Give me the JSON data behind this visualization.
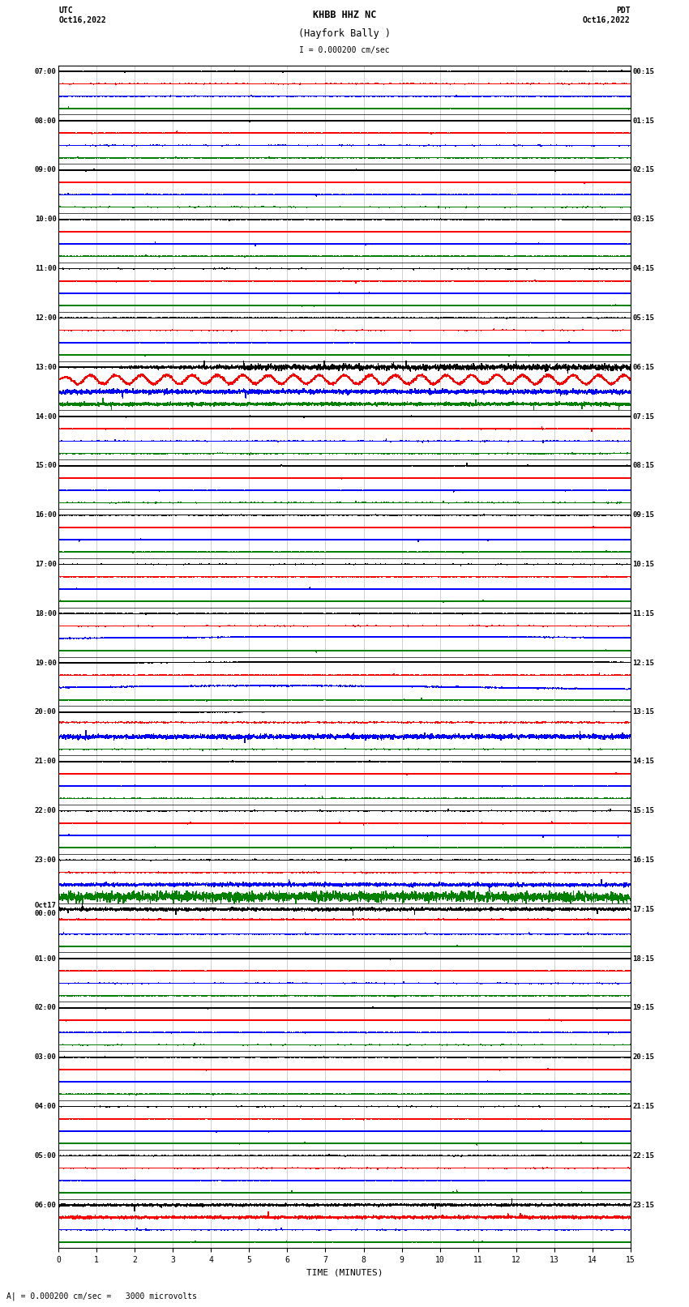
{
  "title_line1": "KHBB HHZ NC",
  "title_line2": "(Hayfork Bally )",
  "scale_text": "I = 0.000200 cm/sec",
  "bottom_label": "A| = 0.000200 cm/sec =   3000 microvolts",
  "xlabel": "TIME (MINUTES)",
  "fig_width": 8.5,
  "fig_height": 16.13,
  "dpi": 100,
  "xlim": [
    0,
    15
  ],
  "xticks": [
    0,
    1,
    2,
    3,
    4,
    5,
    6,
    7,
    8,
    9,
    10,
    11,
    12,
    13,
    14,
    15
  ],
  "left_times": [
    "07:00",
    "08:00",
    "09:00",
    "10:00",
    "11:00",
    "12:00",
    "13:00",
    "14:00",
    "15:00",
    "16:00",
    "17:00",
    "18:00",
    "19:00",
    "20:00",
    "21:00",
    "22:00",
    "23:00",
    "Oct17\n00:00",
    "01:00",
    "02:00",
    "03:00",
    "04:00",
    "05:00",
    "06:00"
  ],
  "right_times": [
    "00:15",
    "01:15",
    "02:15",
    "03:15",
    "04:15",
    "05:15",
    "06:15",
    "07:15",
    "08:15",
    "09:15",
    "10:15",
    "11:15",
    "12:15",
    "13:15",
    "14:15",
    "15:15",
    "16:15",
    "17:15",
    "18:15",
    "19:15",
    "20:15",
    "21:15",
    "22:15",
    "23:15"
  ],
  "num_rows": 96,
  "colors_cycle": [
    "black",
    "red",
    "blue",
    "green"
  ],
  "noise_amplitude": 0.008,
  "background_color": "white",
  "grid_color": "#888888"
}
